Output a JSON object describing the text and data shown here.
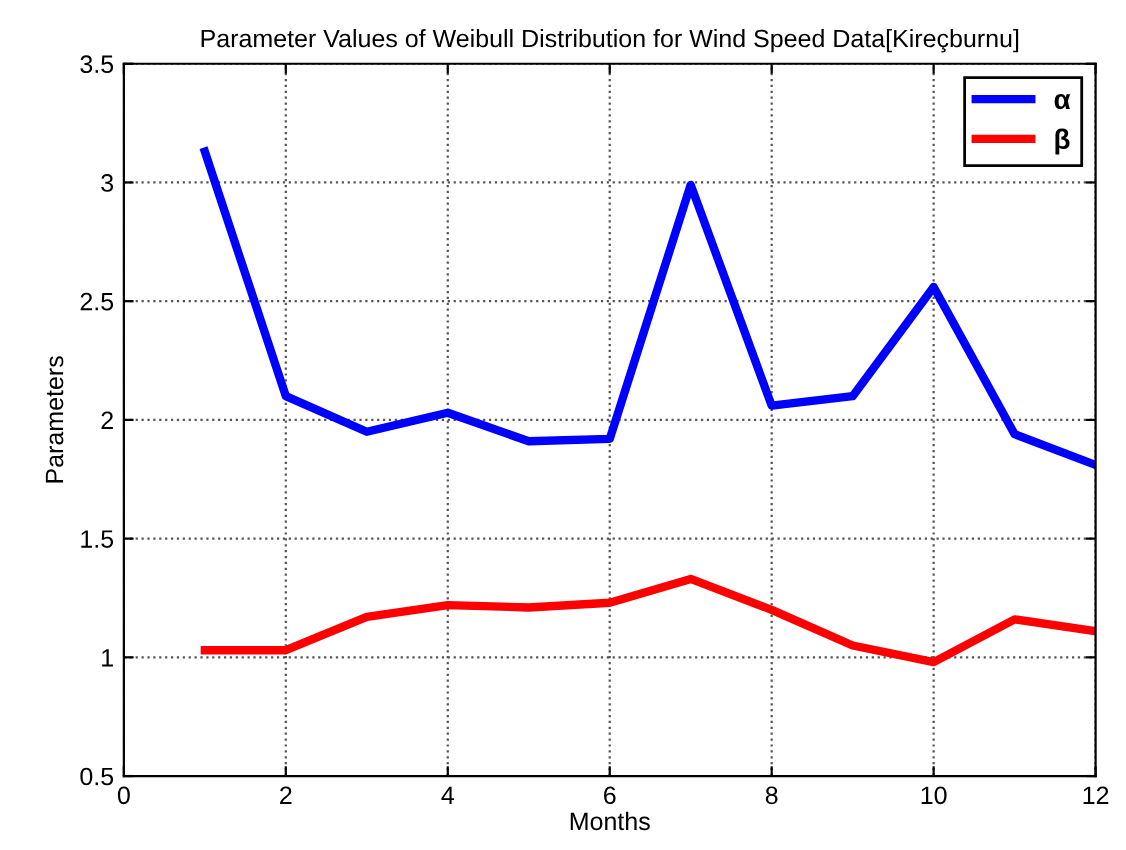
{
  "chart_data": {
    "type": "line",
    "title": "Parameter Values of Weibull Distribution for Wind Speed Data[Kireçburnu]",
    "xlabel": "Months",
    "ylabel": "Parameters",
    "x": [
      1,
      2,
      3,
      4,
      5,
      6,
      7,
      8,
      9,
      10,
      11,
      12
    ],
    "series": [
      {
        "name": "α",
        "color": "#0000ff",
        "values": [
          3.13,
          2.1,
          1.95,
          2.03,
          1.91,
          1.92,
          2.99,
          2.06,
          2.1,
          2.56,
          1.94,
          1.81
        ]
      },
      {
        "name": "β",
        "color": "#ff0000",
        "values": [
          1.03,
          1.03,
          1.17,
          1.22,
          1.21,
          1.23,
          1.33,
          1.2,
          1.05,
          0.98,
          1.16,
          1.11
        ]
      }
    ],
    "xlim": [
      0,
      12
    ],
    "xticks": [
      0,
      2,
      4,
      6,
      8,
      10,
      12
    ],
    "ylim": [
      0.5,
      3.5
    ],
    "yticks": [
      0.5,
      1,
      1.5,
      2,
      2.5,
      3,
      3.5
    ],
    "grid": true,
    "legend": "top right",
    "line_style": "solid",
    "marker": "none"
  }
}
